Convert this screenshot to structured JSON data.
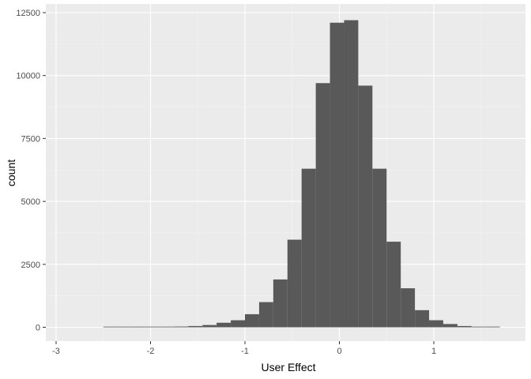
{
  "chart_data": {
    "type": "bar",
    "subtype": "histogram",
    "title": "",
    "xlabel": "User Effect",
    "ylabel": "count",
    "xlim": [
      -3.05,
      1.95
    ],
    "ylim": [
      0,
      12500
    ],
    "xticks": [
      -3,
      -2,
      -1,
      0,
      1
    ],
    "xtick_labels": [
      "-3",
      "-2",
      "-1",
      "0",
      "1"
    ],
    "yticks": [
      0,
      2500,
      5000,
      7500,
      10000,
      12500
    ],
    "ytick_labels": [
      "0",
      "2500",
      "5000",
      "7500",
      "10000",
      "12500"
    ],
    "grid": true,
    "bin_width": 0.15,
    "bins": [
      {
        "x0": -2.5,
        "x1": -2.35,
        "count": 10
      },
      {
        "x0": -2.35,
        "x1": -2.2,
        "count": 10
      },
      {
        "x0": -2.2,
        "x1": -2.05,
        "count": 10
      },
      {
        "x0": -2.05,
        "x1": -1.9,
        "count": 15
      },
      {
        "x0": -1.9,
        "x1": -1.75,
        "count": 20
      },
      {
        "x0": -1.75,
        "x1": -1.6,
        "count": 30
      },
      {
        "x0": -1.6,
        "x1": -1.45,
        "count": 50
      },
      {
        "x0": -1.45,
        "x1": -1.3,
        "count": 90
      },
      {
        "x0": -1.3,
        "x1": -1.15,
        "count": 180
      },
      {
        "x0": -1.15,
        "x1": -1.0,
        "count": 280
      },
      {
        "x0": -1.0,
        "x1": -0.85,
        "count": 520
      },
      {
        "x0": -0.85,
        "x1": -0.7,
        "count": 1000
      },
      {
        "x0": -0.7,
        "x1": -0.55,
        "count": 1900
      },
      {
        "x0": -0.55,
        "x1": -0.4,
        "count": 3480
      },
      {
        "x0": -0.4,
        "x1": -0.25,
        "count": 6300
      },
      {
        "x0": -0.25,
        "x1": -0.1,
        "count": 9700
      },
      {
        "x0": -0.1,
        "x1": 0.05,
        "count": 12100
      },
      {
        "x0": 0.05,
        "x1": 0.2,
        "count": 12200
      },
      {
        "x0": 0.2,
        "x1": 0.35,
        "count": 9600
      },
      {
        "x0": 0.35,
        "x1": 0.5,
        "count": 6300
      },
      {
        "x0": 0.5,
        "x1": 0.65,
        "count": 3400
      },
      {
        "x0": 0.65,
        "x1": 0.8,
        "count": 1550
      },
      {
        "x0": 0.8,
        "x1": 0.95,
        "count": 680
      },
      {
        "x0": 0.95,
        "x1": 1.1,
        "count": 280
      },
      {
        "x0": 1.1,
        "x1": 1.25,
        "count": 130
      },
      {
        "x0": 1.25,
        "x1": 1.4,
        "count": 50
      },
      {
        "x0": 1.4,
        "x1": 1.55,
        "count": 20
      },
      {
        "x0": 1.55,
        "x1": 1.7,
        "count": 10
      }
    ],
    "colors": {
      "panel_background": "#ebebeb",
      "grid_major": "#ffffff",
      "grid_minor": "#f2f2f2",
      "bar_fill": "#595959",
      "tick_text": "#4d4d4d",
      "tick_mark": "#333333",
      "axis_title": "#000000"
    }
  }
}
